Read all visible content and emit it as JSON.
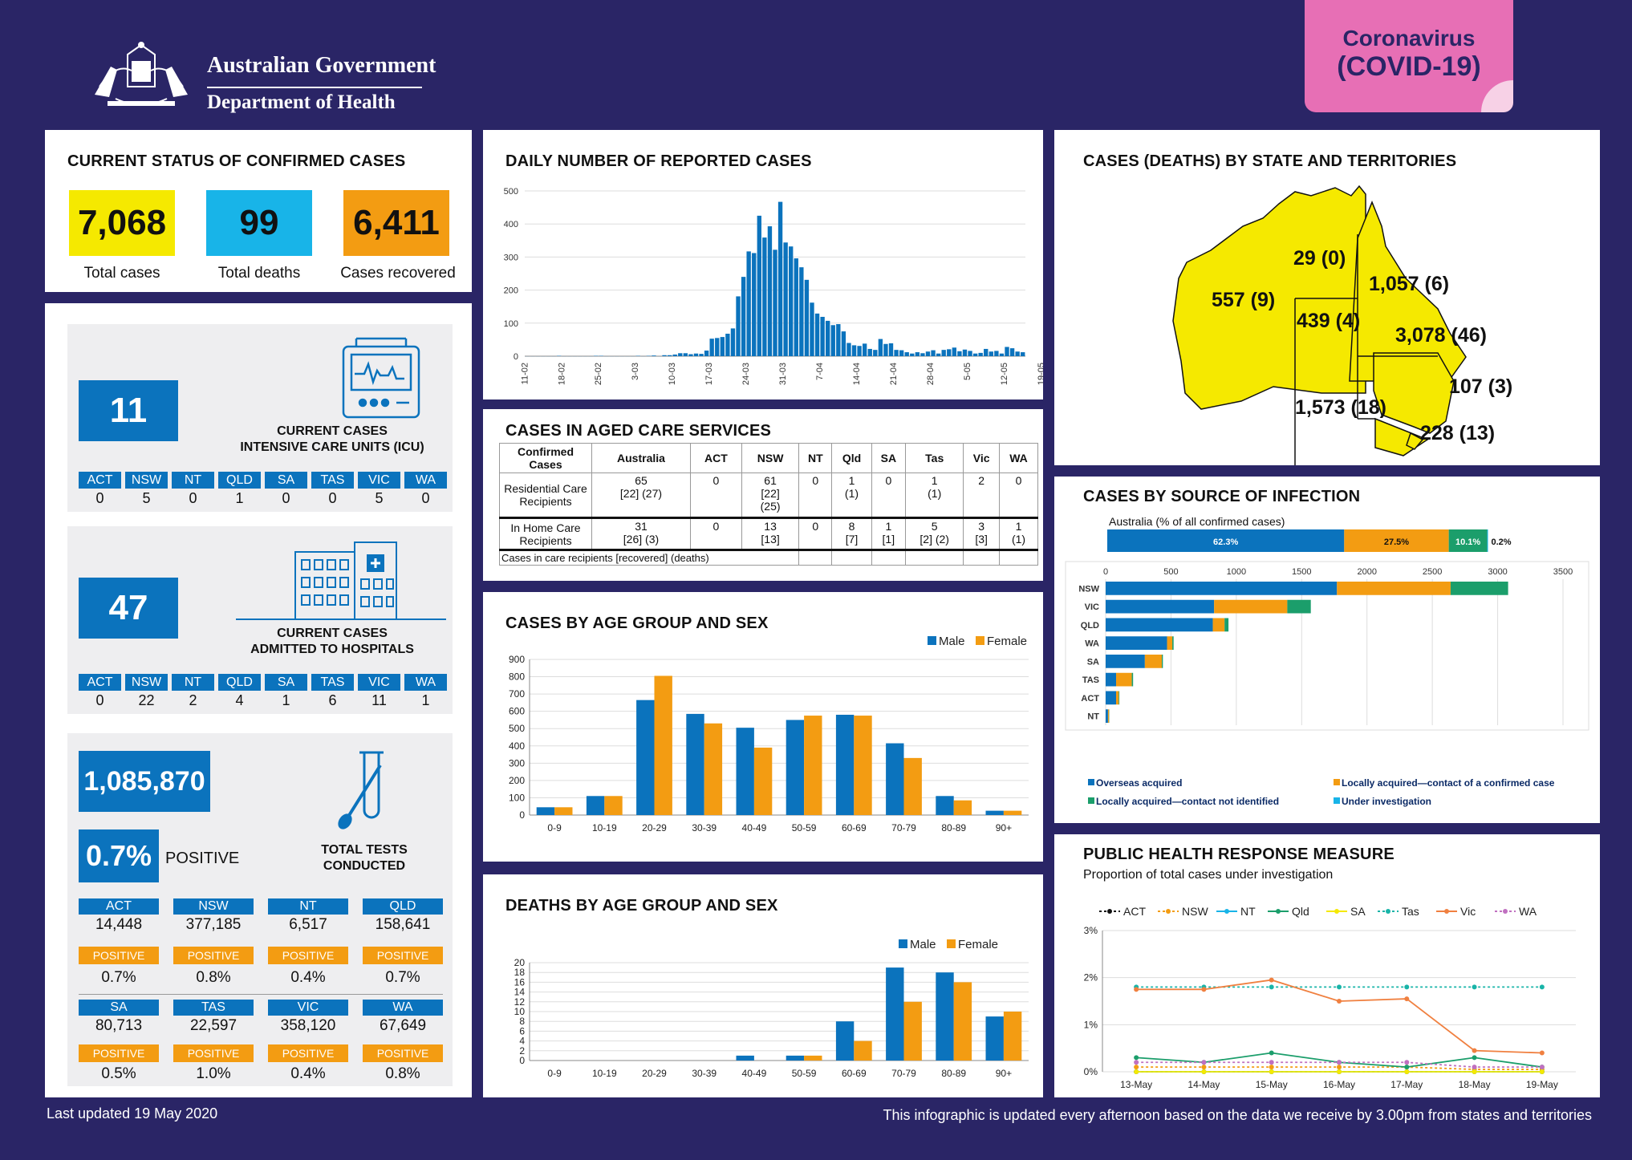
{
  "header": {
    "gov_line1": "Australian Government",
    "gov_line2": "Department of Health",
    "badge_line1": "Coronavirus",
    "badge_line2": "(COVID-19)"
  },
  "colors": {
    "background": "#2a2566",
    "blue": "#0b73bd",
    "orange": "#f39c12",
    "yellow": "#f5e900",
    "cyan": "#18b4e8",
    "green": "#1b9e6b",
    "pink": "#e76fb5"
  },
  "status": {
    "title": "CURRENT STATUS OF CONFIRMED CASES",
    "total_cases": "7,068",
    "total_cases_label": "Total cases",
    "total_deaths": "99",
    "total_deaths_label": "Total deaths",
    "recovered": "6,411",
    "recovered_label": "Cases recovered"
  },
  "icu": {
    "value": "11",
    "label_line1": "CURRENT CASES",
    "label_line2": "INTENSIVE CARE UNITS (ICU)",
    "states": [
      {
        "s": "ACT",
        "v": "0"
      },
      {
        "s": "NSW",
        "v": "5"
      },
      {
        "s": "NT",
        "v": "0"
      },
      {
        "s": "QLD",
        "v": "1"
      },
      {
        "s": "SA",
        "v": "0"
      },
      {
        "s": "TAS",
        "v": "0"
      },
      {
        "s": "VIC",
        "v": "5"
      },
      {
        "s": "WA",
        "v": "0"
      }
    ]
  },
  "hospital": {
    "value": "47",
    "label_line1": "CURRENT CASES",
    "label_line2": "ADMITTED TO HOSPITALS",
    "states": [
      {
        "s": "ACT",
        "v": "0"
      },
      {
        "s": "NSW",
        "v": "22"
      },
      {
        "s": "NT",
        "v": "2"
      },
      {
        "s": "QLD",
        "v": "4"
      },
      {
        "s": "SA",
        "v": "1"
      },
      {
        "s": "TAS",
        "v": "6"
      },
      {
        "s": "VIC",
        "v": "11"
      },
      {
        "s": "WA",
        "v": "1"
      }
    ]
  },
  "tests": {
    "total": "1,085,870",
    "positive_pct": "0.7%",
    "positive_label": "POSITIVE",
    "label_line1": "TOTAL TESTS",
    "label_line2": "CONDUCTED",
    "pos_word": "POSITIVE",
    "states": [
      {
        "s": "ACT",
        "n": "14,448",
        "p": "0.7%"
      },
      {
        "s": "NSW",
        "n": "377,185",
        "p": "0.8%"
      },
      {
        "s": "NT",
        "n": "6,517",
        "p": "0.4%"
      },
      {
        "s": "QLD",
        "n": "158,641",
        "p": "0.7%"
      },
      {
        "s": "SA",
        "n": "80,713",
        "p": "0.5%"
      },
      {
        "s": "TAS",
        "n": "22,597",
        "p": "1.0%"
      },
      {
        "s": "VIC",
        "n": "358,120",
        "p": "0.4%"
      },
      {
        "s": "WA",
        "n": "67,649",
        "p": "0.8%"
      }
    ]
  },
  "aged": {
    "title": "CASES IN AGED CARE SERVICES",
    "headers": [
      "Confirmed Cases",
      "Australia",
      "ACT",
      "NSW",
      "NT",
      "Qld",
      "SA",
      "Tas",
      "Vic",
      "WA"
    ],
    "rows": [
      {
        "label": "Residential Care Recipients",
        "cells": [
          "65\n[22] (27)",
          "0",
          "61\n[22]\n(25)",
          "0",
          "1\n(1)",
          "0",
          "1\n(1)",
          "2",
          "0"
        ]
      },
      {
        "label": "In Home Care Recipients",
        "cells": [
          "31\n[26] (3)",
          "0",
          "13\n[13]",
          "0",
          "8\n[7]",
          "1\n[1]",
          "5\n[2] (2)",
          "3\n[3]",
          "1\n(1)"
        ]
      }
    ],
    "footnote": "Cases in care recipients [recovered] (deaths)"
  },
  "map": {
    "title": "CASES (DEATHS) BY STATE AND TERRITORIES",
    "labels": {
      "WA": "557 (9)",
      "NT": "29 (0)",
      "QLD": "1,057 (6)",
      "SA": "439 (4)",
      "NSW": "3,078 (46)",
      "ACT": "107 (3)",
      "VIC": "1,573 (18)",
      "TAS": "228 (13)"
    }
  },
  "footer": {
    "left": "Last updated 19 May 2020",
    "right": "This infographic is updated every afternoon based on the data we receive by 3.00pm from states and territories"
  },
  "chart_data": [
    {
      "id": "daily",
      "type": "bar",
      "title": "DAILY NUMBER OF REPORTED CASES",
      "ylim": [
        0,
        500
      ],
      "yticks": [
        0,
        100,
        200,
        300,
        400,
        500
      ],
      "tick_labels": [
        "11-02",
        "18-02",
        "25-02",
        "3-03",
        "10-03",
        "17-03",
        "24-03",
        "31-03",
        "7-04",
        "14-04",
        "21-04",
        "28-04",
        "5-05",
        "12-05",
        "19-05"
      ],
      "values": [
        0,
        0,
        0,
        0,
        0,
        0,
        1,
        0,
        0,
        0,
        0,
        0,
        0,
        1,
        1,
        0,
        0,
        0,
        0,
        0,
        0,
        1,
        0,
        1,
        2,
        0,
        3,
        3,
        5,
        9,
        9,
        6,
        8,
        7,
        17,
        53,
        55,
        58,
        68,
        84,
        181,
        240,
        317,
        312,
        425,
        359,
        393,
        322,
        467,
        344,
        332,
        296,
        269,
        231,
        162,
        129,
        119,
        107,
        94,
        97,
        75,
        40,
        33,
        31,
        38,
        22,
        19,
        52,
        37,
        39,
        19,
        18,
        12,
        8,
        12,
        9,
        14,
        18,
        8,
        19,
        21,
        26,
        15,
        20,
        16,
        8,
        10,
        22,
        14,
        16,
        8,
        28,
        24,
        14,
        12
      ]
    },
    {
      "id": "age",
      "type": "bar",
      "title": "CASES BY AGE GROUP AND SEX",
      "categories": [
        "0-9",
        "10-19",
        "20-29",
        "30-39",
        "40-49",
        "50-59",
        "60-69",
        "70-79",
        "80-89",
        "90+"
      ],
      "ylim": [
        0,
        900
      ],
      "yticks": [
        0,
        100,
        200,
        300,
        400,
        500,
        600,
        700,
        800,
        900
      ],
      "series": [
        {
          "name": "Male",
          "color": "#0b73bd",
          "values": [
            45,
            110,
            665,
            585,
            505,
            550,
            580,
            415,
            110,
            25
          ]
        },
        {
          "name": "Female",
          "color": "#f39c12",
          "values": [
            45,
            110,
            805,
            530,
            390,
            575,
            575,
            330,
            85,
            25
          ]
        }
      ]
    },
    {
      "id": "deaths",
      "type": "bar",
      "title": "DEATHS BY AGE GROUP AND SEX",
      "categories": [
        "0-9",
        "10-19",
        "20-29",
        "30-39",
        "40-49",
        "50-59",
        "60-69",
        "70-79",
        "80-89",
        "90+"
      ],
      "ylim": [
        0,
        20
      ],
      "yticks": [
        0,
        2,
        4,
        6,
        8,
        10,
        12,
        14,
        16,
        18,
        20
      ],
      "series": [
        {
          "name": "Male",
          "color": "#0b73bd",
          "values": [
            0,
            0,
            0,
            0,
            1,
            1,
            8,
            19,
            18,
            9
          ]
        },
        {
          "name": "Female",
          "color": "#f39c12",
          "values": [
            0,
            0,
            0,
            0,
            0,
            1,
            4,
            12,
            16,
            10
          ]
        }
      ]
    },
    {
      "id": "source",
      "type": "bar",
      "title": "CASES BY SOURCE OF INFECTION",
      "summary_label": "Australia (% of all confirmed cases)",
      "summary": [
        {
          "label": "62.3%",
          "value": 62.3,
          "color": "#0b73bd"
        },
        {
          "label": "27.5%",
          "value": 27.5,
          "color": "#f39c12"
        },
        {
          "label": "10.1%",
          "value": 10.1,
          "color": "#1b9e6b"
        },
        {
          "label": "0.2%",
          "value": 0.2,
          "color": "#18b4e8"
        }
      ],
      "categories": [
        "NSW",
        "VIC",
        "QLD",
        "WA",
        "SA",
        "TAS",
        "ACT",
        "NT"
      ],
      "xlim": [
        0,
        3500
      ],
      "xticks": [
        0,
        500,
        1000,
        1500,
        2000,
        2500,
        3000,
        3500
      ],
      "series": [
        {
          "name": "Overseas acquired",
          "color": "#0b73bd",
          "values": [
            1770,
            830,
            820,
            470,
            300,
            80,
            80,
            18
          ]
        },
        {
          "name": "Locally acquired—contact of a confirmed case",
          "color": "#f39c12",
          "values": [
            870,
            560,
            90,
            40,
            130,
            120,
            20,
            8
          ]
        },
        {
          "name": "Locally acquired—contact not identified",
          "color": "#1b9e6b",
          "values": [
            440,
            180,
            30,
            10,
            8,
            10,
            5,
            2
          ]
        },
        {
          "name": "Under investigation",
          "color": "#18b4e8",
          "values": [
            0,
            0,
            0,
            0,
            0,
            0,
            0,
            0
          ]
        }
      ]
    },
    {
      "id": "phr",
      "type": "line",
      "title": "PUBLIC HEALTH RESPONSE MEASURE",
      "subtitle": "Proportion of total cases under investigation",
      "x": [
        "13-May",
        "14-May",
        "15-May",
        "16-May",
        "17-May",
        "18-May",
        "19-May"
      ],
      "ylim": [
        0,
        3
      ],
      "yticks": [
        "0%",
        "1%",
        "2%",
        "3%"
      ],
      "series": [
        {
          "name": "ACT",
          "color": "#111111",
          "values": [
            0,
            0,
            0,
            0,
            0,
            0,
            0
          ]
        },
        {
          "name": "NSW",
          "color": "#f39c12",
          "values": [
            0.1,
            0.1,
            0.1,
            0.1,
            0.1,
            0.05,
            0.05
          ]
        },
        {
          "name": "NT",
          "color": "#18b4e8",
          "values": [
            0,
            0,
            0,
            0,
            0,
            0,
            0
          ]
        },
        {
          "name": "Qld",
          "color": "#1b9e6b",
          "values": [
            0.3,
            0.2,
            0.4,
            0.2,
            0.1,
            0.3,
            0.1
          ]
        },
        {
          "name": "SA",
          "color": "#f5e900",
          "values": [
            0,
            0,
            0,
            0,
            0,
            0,
            0
          ]
        },
        {
          "name": "Tas",
          "color": "#18b4a8",
          "values": [
            1.8,
            1.8,
            1.8,
            1.8,
            1.8,
            1.8,
            1.8
          ]
        },
        {
          "name": "Vic",
          "color": "#f08040",
          "values": [
            1.75,
            1.75,
            1.95,
            1.5,
            1.55,
            0.45,
            0.4
          ]
        },
        {
          "name": "WA",
          "color": "#c070c0",
          "values": [
            0.2,
            0.2,
            0.2,
            0.2,
            0.2,
            0.1,
            0.1
          ]
        }
      ]
    }
  ]
}
